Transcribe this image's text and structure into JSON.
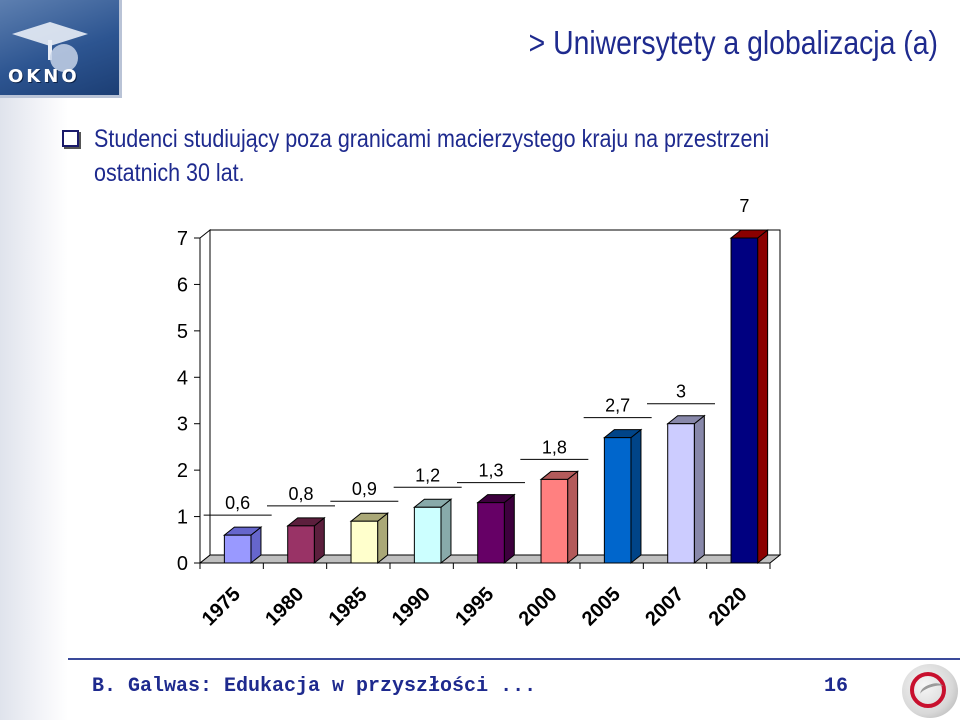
{
  "logo": {
    "text": "OKNO"
  },
  "header": {
    "title": "> Uniwersytety a globalizacja (a)"
  },
  "bullet": {
    "text": "Studenci studiujący poza granicami macierzystego kraju na przestrzeni ostatnich 30 lat."
  },
  "footer": {
    "author": "B. Galwas: Edukacja w przyszłości ...",
    "page": "16"
  },
  "chart_data": {
    "type": "bar",
    "categories": [
      "1975",
      "1980",
      "1985",
      "1990",
      "1995",
      "2000",
      "2005",
      "2007",
      "2020"
    ],
    "values": [
      0.6,
      0.8,
      0.9,
      1.2,
      1.3,
      1.8,
      2.7,
      3,
      7
    ],
    "value_labels": [
      "0,6",
      "0,8",
      "0,9",
      "1,2",
      "1,3",
      "1,8",
      "2,7",
      "3",
      "7"
    ],
    "y_ticks": [
      "0",
      "1",
      "2",
      "3",
      "4",
      "5",
      "6",
      "7"
    ],
    "ylim": [
      0,
      7
    ],
    "style": "3d",
    "colors": [
      "#9999ff",
      "#993366",
      "#ffffcc",
      "#ccffff",
      "#660066",
      "#ff8080",
      "#0066cc",
      "#ccccff",
      "#000080"
    ],
    "side_colors": [
      "#6666cc",
      "#5c1f3d",
      "#aaa877",
      "#88aaaa",
      "#3d003d",
      "#b35a5a",
      "#004488",
      "#8888aa",
      "#8b0000"
    ],
    "title": "",
    "xlabel": "",
    "ylabel": ""
  }
}
